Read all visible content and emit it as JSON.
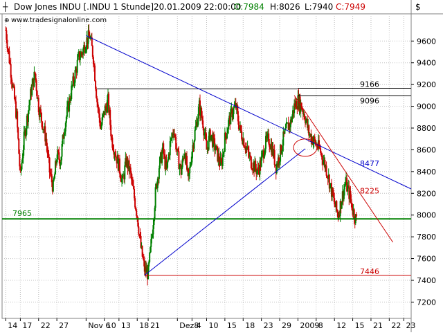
{
  "header": {
    "instrument": "Dow Jones INDU [.INDU  1 Stunde]",
    "datetime": "20.01.2009 22:00:00",
    "open_label": "O:7984",
    "high_label": "H:8026",
    "low_label": "L:7940",
    "close_label": "C:7949",
    "currency": "$",
    "watermark": "www.tradesignalonline.com"
  },
  "chart_data": {
    "type": "candlestick",
    "title": "Dow Jones INDU [.INDU  1 Stunde]",
    "interval": "1 Stunde",
    "ylim": [
      7050,
      9850
    ],
    "y_ticks": [
      7200,
      7400,
      7600,
      7800,
      8000,
      8200,
      8400,
      8600,
      8800,
      9000,
      9200,
      9400,
      9600
    ],
    "x_tick_labels": [
      "14",
      "17",
      "22",
      "27",
      "Nov 6",
      "10",
      "13",
      "18",
      "21",
      "Dez 4",
      "8",
      "10",
      "15",
      "18",
      "23",
      "29",
      "2009",
      "8",
      "12",
      "15",
      "21",
      "22",
      "23"
    ],
    "x_tick_positions": [
      0.0,
      4.0,
      9.0,
      14.0,
      22.0,
      27.0,
      31.0,
      36.0,
      39.0,
      47.0,
      51.0,
      55.0,
      60.0,
      65.0,
      70.0,
      75.0,
      80.0,
      85.0,
      90.0,
      95.0,
      100.0,
      105.0,
      109.0
    ],
    "x_range": [
      -1,
      111
    ],
    "price_path": [
      [
        0,
        9700
      ],
      [
        3,
        8900
      ],
      [
        4,
        8350
      ],
      [
        5,
        8700
      ],
      [
        7,
        9150
      ],
      [
        8,
        9300
      ],
      [
        9,
        9000
      ],
      [
        11,
        8700
      ],
      [
        12,
        8400
      ],
      [
        13,
        8250
      ],
      [
        14,
        8550
      ],
      [
        15,
        8500
      ],
      [
        16,
        8800
      ],
      [
        18,
        9150
      ],
      [
        19,
        9300
      ],
      [
        20,
        9450
      ],
      [
        21,
        9500
      ],
      [
        22,
        9600
      ],
      [
        23,
        9650
      ],
      [
        24,
        9450
      ],
      [
        25,
        9050
      ],
      [
        26,
        8800
      ],
      [
        27,
        8950
      ],
      [
        28,
        9050
      ],
      [
        29,
        8700
      ],
      [
        31,
        8450
      ],
      [
        32,
        8300
      ],
      [
        33,
        8500
      ],
      [
        34,
        8400
      ],
      [
        35,
        8200
      ],
      [
        36,
        8000
      ],
      [
        37,
        7700
      ],
      [
        38,
        7500
      ],
      [
        39,
        7460
      ],
      [
        40,
        7800
      ],
      [
        41,
        8200
      ],
      [
        42,
        8450
      ],
      [
        43,
        8600
      ],
      [
        44,
        8400
      ],
      [
        45,
        8650
      ],
      [
        46,
        8800
      ],
      [
        47,
        8550
      ],
      [
        48,
        8400
      ],
      [
        49,
        8600
      ],
      [
        50,
        8300
      ],
      [
        51,
        8600
      ],
      [
        52,
        8800
      ],
      [
        53,
        9000
      ],
      [
        54,
        8850
      ],
      [
        55,
        8600
      ],
      [
        56,
        8750
      ],
      [
        57,
        8650
      ],
      [
        58,
        8550
      ],
      [
        59,
        8450
      ],
      [
        60,
        8700
      ],
      [
        61,
        8850
      ],
      [
        62,
        8950
      ],
      [
        63,
        9000
      ],
      [
        64,
        8800
      ],
      [
        65,
        8700
      ],
      [
        66,
        8600
      ],
      [
        67,
        8500
      ],
      [
        68,
        8450
      ],
      [
        69,
        8400
      ],
      [
        70,
        8500
      ],
      [
        71,
        8650
      ],
      [
        72,
        8700
      ],
      [
        73,
        8600
      ],
      [
        74,
        8450
      ],
      [
        75,
        8550
      ],
      [
        76,
        8700
      ],
      [
        77,
        8800
      ],
      [
        78,
        8850
      ],
      [
        79,
        9000
      ],
      [
        80,
        9050
      ],
      [
        81,
        9000
      ],
      [
        82,
        8900
      ],
      [
        83,
        8750
      ],
      [
        84,
        8700
      ],
      [
        85,
        8650
      ],
      [
        86,
        8600
      ],
      [
        87,
        8500
      ],
      [
        88,
        8400
      ],
      [
        89,
        8250
      ],
      [
        90,
        8100
      ],
      [
        91,
        8000
      ],
      [
        92,
        8150
      ],
      [
        93,
        8300
      ],
      [
        94,
        8200
      ],
      [
        95,
        8050
      ],
      [
        96,
        7950
      ]
    ],
    "lines": [
      {
        "name": "support-7965",
        "color": "#008000",
        "level": 7965,
        "label": "7965"
      },
      {
        "name": "level-7446",
        "color": "#cc0000",
        "level": 7446,
        "label": "7446",
        "from_x": 38
      },
      {
        "name": "level-9166",
        "color": "#000000",
        "level": 9166,
        "label": "9166",
        "from_x": 80
      },
      {
        "name": "level-9096",
        "color": "#000000",
        "level": 9096,
        "label": "9096",
        "from_x": 80
      },
      {
        "name": "level-short",
        "color": "#000000",
        "level": 9160,
        "from_x": 25,
        "to_x": 80
      }
    ],
    "trendlines": [
      {
        "name": "downtrend-blue",
        "color": "#0000cc",
        "from": [
          22,
          9650
        ],
        "to": [
          111,
          8240
        ],
        "label": "8477"
      },
      {
        "name": "uptrend-blue",
        "color": "#0000cc",
        "from": [
          38,
          7446
        ],
        "to": [
          82,
          8610
        ]
      },
      {
        "name": "downtrend-red",
        "color": "#cc0000",
        "from": [
          79,
          9100
        ],
        "to": [
          106,
          7750
        ],
        "label": "8225"
      }
    ],
    "trendline_labels": [
      {
        "text": "8477",
        "color": "#0000cc",
        "at_y": 8477
      },
      {
        "text": "8225",
        "color": "#cc0000",
        "at_y": 8225
      }
    ],
    "ellipse": {
      "color": "#cc0000",
      "cx": 82,
      "cy": 8620,
      "rx": 3.2,
      "ry": 80
    },
    "colors": {
      "up": "#008000",
      "down": "#cc0000",
      "wick": "#000000",
      "grid": "#c0c0c0"
    }
  }
}
